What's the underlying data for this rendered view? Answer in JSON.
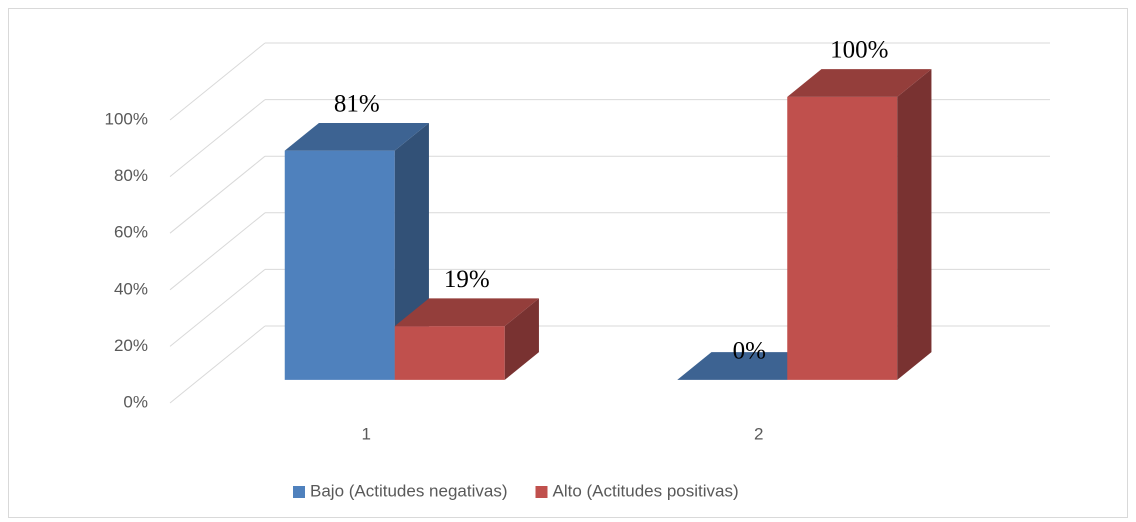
{
  "chart_data": {
    "type": "bar3d",
    "categories": [
      "1",
      "2"
    ],
    "series": [
      {
        "name": "Bajo (Actitudes negativas)",
        "color": "#4f81bd",
        "values": [
          81,
          0
        ],
        "value_labels": [
          "81%",
          "0%"
        ]
      },
      {
        "name": "Alto (Actitudes positivas)",
        "color": "#c0504d",
        "values": [
          19,
          100
        ],
        "value_labels": [
          "19%",
          "100%"
        ]
      }
    ],
    "ylim": [
      0,
      100
    ],
    "yticks": [
      {
        "value": 0,
        "label": "0%"
      },
      {
        "value": 20,
        "label": "20%"
      },
      {
        "value": 40,
        "label": "40%"
      },
      {
        "value": 60,
        "label": "60%"
      },
      {
        "value": 80,
        "label": "80%"
      },
      {
        "value": 100,
        "label": "100%"
      }
    ],
    "grid": true,
    "legend": "bottom"
  }
}
